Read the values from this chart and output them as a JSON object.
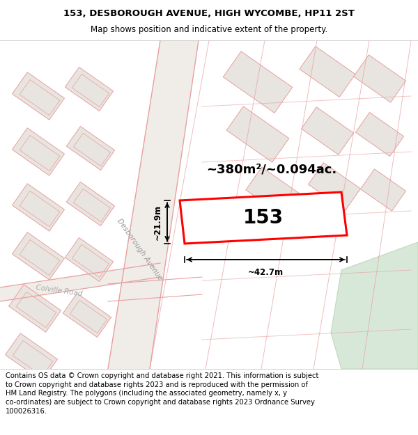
{
  "title_line1": "153, DESBOROUGH AVENUE, HIGH WYCOMBE, HP11 2ST",
  "title_line2": "Map shows position and indicative extent of the property.",
  "footer_lines": [
    "Contains OS data © Crown copyright and database right 2021. This information is subject",
    "to Crown copyright and database rights 2023 and is reproduced with the permission of",
    "HM Land Registry. The polygons (including the associated geometry, namely x, y",
    "co-ordinates) are subject to Crown copyright and database rights 2023 Ordnance Survey",
    "100026316."
  ],
  "area_label": "~380m²/~0.094ac.",
  "plot_number": "153",
  "width_label": "~42.7m",
  "height_label": "~21.9m",
  "road_label1": "Desborough Avenue",
  "road_label2": "Colville Road",
  "map_bg": "#f5f2ee",
  "building_fill": "#e8e4df",
  "road_line_color": "#e8a0a0",
  "plot_stroke": "#ff0000",
  "green_fill": "#d8e8d8",
  "green_edge": "#c0d8c0",
  "road_bg": "#f0ece8",
  "title_fontsize": 9.5,
  "subtitle_fontsize": 8.5,
  "footer_fontsize": 7.2,
  "area_fontsize": 13,
  "plot_num_fontsize": 20,
  "dim_fontsize": 8.5
}
